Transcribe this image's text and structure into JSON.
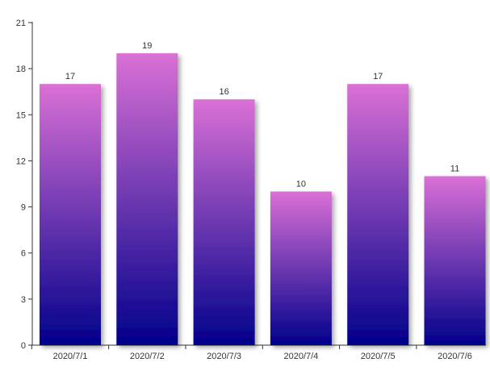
{
  "chart_data": {
    "type": "bar",
    "categories": [
      "2020/7/1",
      "2020/7/2",
      "2020/7/3",
      "2020/7/4",
      "2020/7/5",
      "2020/7/6"
    ],
    "values": [
      17,
      19,
      16,
      10,
      17,
      11
    ],
    "title": "",
    "xlabel": "",
    "ylabel": "",
    "ylim": [
      0,
      21
    ],
    "yticks": [
      0,
      3,
      6,
      9,
      12,
      15,
      18,
      21
    ],
    "grid": false,
    "legend": "none",
    "data_labels": true,
    "colors": {
      "bar_top": "#da70d6",
      "bar_bottom": "#00008b",
      "axis": "#333333",
      "text": "#333333"
    }
  }
}
